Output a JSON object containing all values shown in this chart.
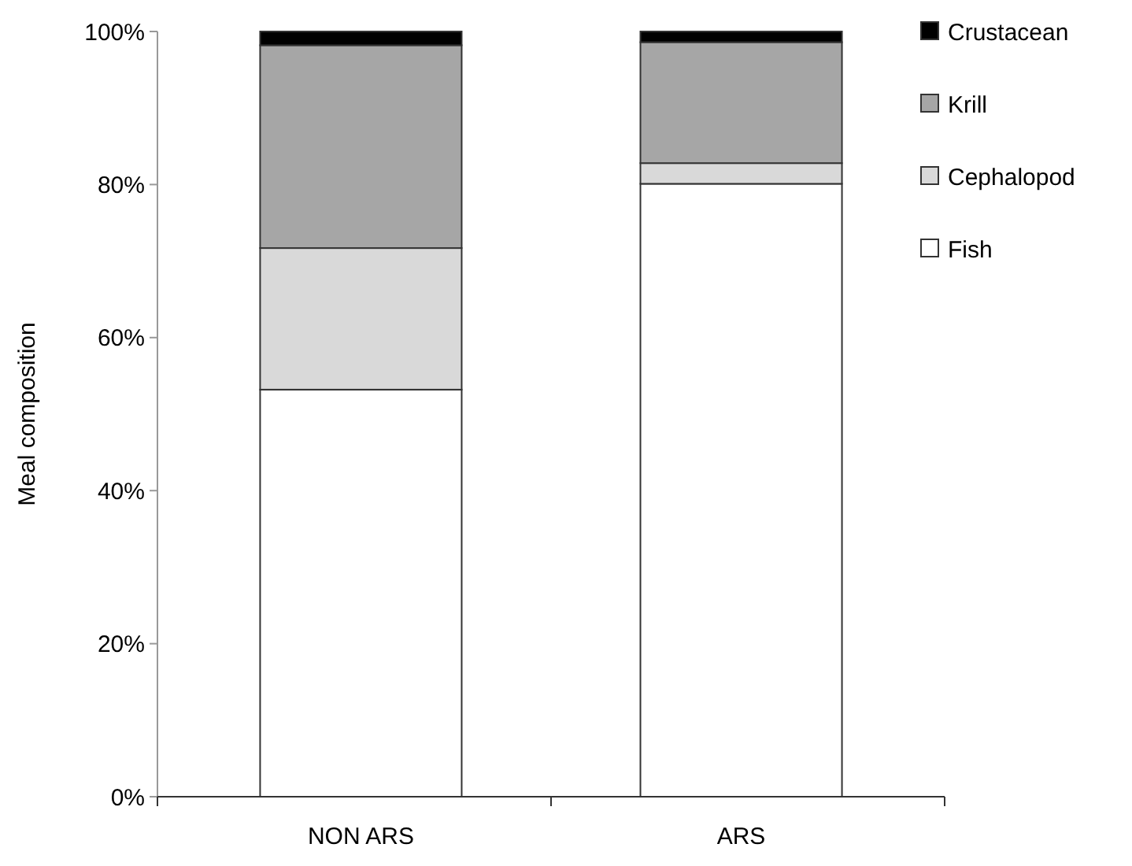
{
  "chart_data": {
    "type": "bar",
    "stacked": true,
    "ylabel": "Meal composition",
    "categories": [
      "NON ARS",
      "ARS"
    ],
    "series": [
      {
        "name": "Fish",
        "color": "#ffffff",
        "values": [
          53.2,
          80.1
        ]
      },
      {
        "name": "Cephalopod",
        "color": "#d9d9d9",
        "values": [
          18.5,
          2.7
        ]
      },
      {
        "name": "Krill",
        "color": "#a6a6a6",
        "values": [
          26.5,
          15.8
        ]
      },
      {
        "name": "Crustacean",
        "color": "#000000",
        "values": [
          1.8,
          1.4
        ]
      }
    ],
    "ylim": [
      0,
      100
    ],
    "yticks": [
      {
        "value": 0,
        "label": "0%"
      },
      {
        "value": 20,
        "label": "20%"
      },
      {
        "value": 40,
        "label": "40%"
      },
      {
        "value": 60,
        "label": "60%"
      },
      {
        "value": 80,
        "label": "80%"
      },
      {
        "value": 100,
        "label": "100%"
      }
    ],
    "legend": "right"
  }
}
